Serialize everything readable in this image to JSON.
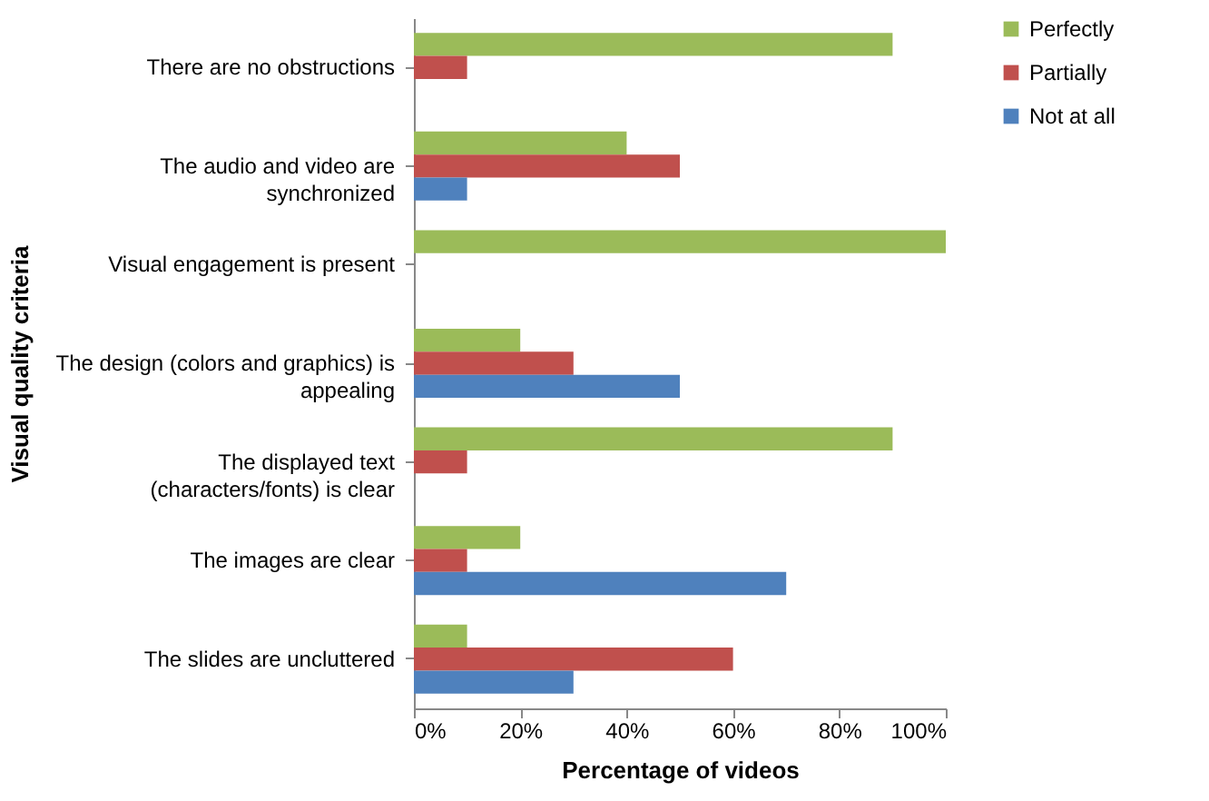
{
  "chart_data": {
    "type": "bar",
    "orientation": "horizontal",
    "ylabel": "Visual quality criteria",
    "xlabel": "Percentage of videos",
    "categories": [
      "There are no obstructions",
      "The audio and video are synchronized",
      "Visual engagement is present",
      "The design (colors and graphics) is appealing",
      "The displayed text (characters/fonts) is clear",
      "The images are clear",
      "The slides are uncluttered"
    ],
    "series": [
      {
        "name": "Perfectly",
        "color": "#9bbb59",
        "values": [
          90,
          40,
          100,
          20,
          90,
          20,
          10
        ]
      },
      {
        "name": "Partially",
        "color": "#c0504d",
        "values": [
          10,
          50,
          0,
          30,
          10,
          10,
          60
        ]
      },
      {
        "name": "Not at all",
        "color": "#4f81bd",
        "values": [
          0,
          10,
          0,
          50,
          0,
          70,
          30
        ]
      }
    ],
    "xlim": [
      0,
      100
    ],
    "xticks": [
      {
        "value": 0,
        "label": "0%"
      },
      {
        "value": 20,
        "label": "20%"
      },
      {
        "value": 40,
        "label": "40%"
      },
      {
        "value": 60,
        "label": "60%"
      },
      {
        "value": 80,
        "label": "80%"
      },
      {
        "value": 100,
        "label": "100%"
      }
    ],
    "grid": false,
    "legend": "right"
  }
}
